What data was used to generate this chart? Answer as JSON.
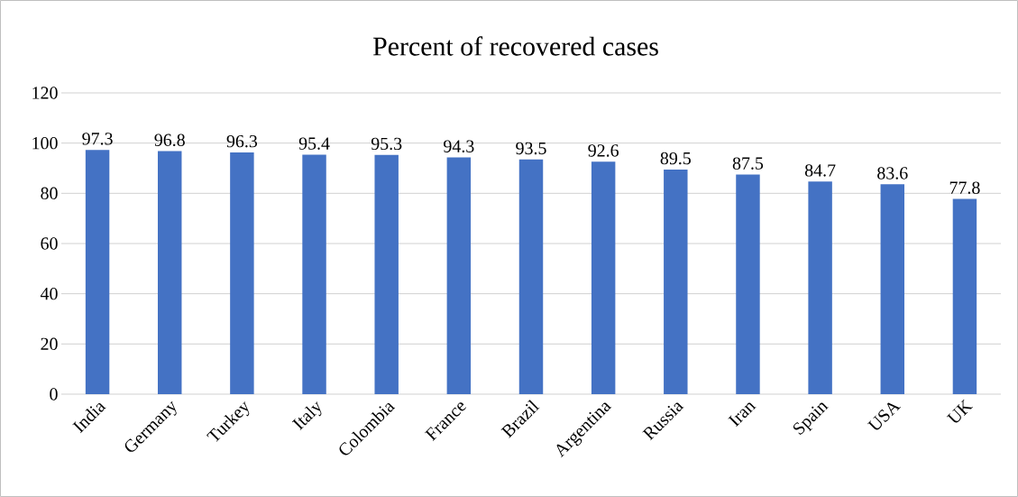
{
  "chart_data": {
    "type": "bar",
    "title": "Percent of recovered cases",
    "categories": [
      "India",
      "Germany",
      "Turkey",
      "Italy",
      "Colombia",
      "France",
      "Brazil",
      "Argentina",
      "Russia",
      "Iran",
      "Spain",
      "USA",
      "UK"
    ],
    "values": [
      97.3,
      96.8,
      96.3,
      95.4,
      95.3,
      94.3,
      93.5,
      92.6,
      89.5,
      87.5,
      84.7,
      83.6,
      77.8
    ],
    "color": "#4472c4",
    "ylim": [
      0,
      120
    ],
    "yticks": [
      0,
      20,
      40,
      60,
      80,
      100,
      120
    ],
    "grid": "y",
    "data_labels": true
  }
}
